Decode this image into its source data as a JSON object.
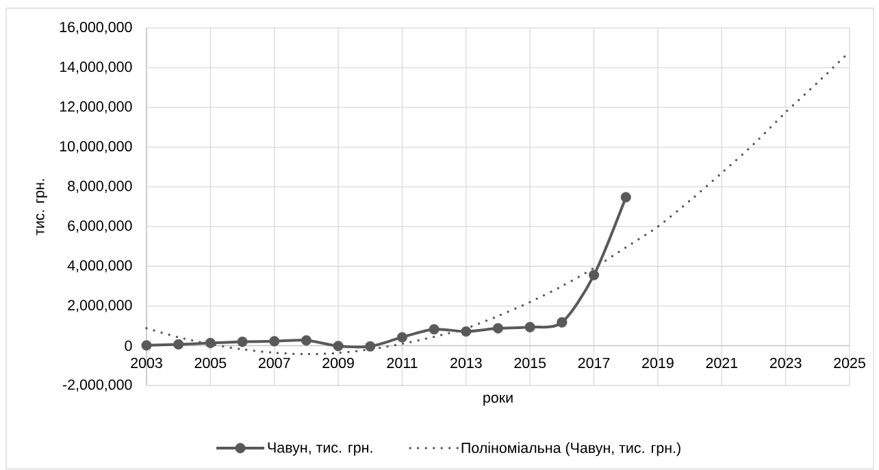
{
  "chart_data": {
    "type": "line",
    "xlabel": "роки",
    "ylabel": "тис. грн.",
    "x": [
      2003,
      2004,
      2005,
      2006,
      2007,
      2008,
      2009,
      2010,
      2011,
      2012,
      2013,
      2014,
      2015,
      2016,
      2017,
      2018
    ],
    "series": [
      {
        "name": "Чавун, тис. грн.",
        "color": "#595959",
        "marker": "circle",
        "line_style": "solid",
        "values": [
          20000,
          70000,
          140000,
          200000,
          230000,
          270000,
          -10000,
          -30000,
          430000,
          830000,
          720000,
          880000,
          940000,
          1180000,
          3560000,
          7480000
        ]
      },
      {
        "name": "Поліноміальна (Чавун, тис. грн.)",
        "color": "#595959",
        "marker": "none",
        "line_style": "dotted",
        "x": [
          2003,
          2004,
          2005,
          2006,
          2007,
          2008,
          2009,
          2010,
          2011,
          2012,
          2013,
          2014,
          2015,
          2016,
          2017,
          2018,
          2019,
          2020,
          2021,
          2022,
          2023,
          2024,
          2025
        ],
        "values": [
          880000,
          430000,
          80000,
          -180000,
          -350000,
          -420000,
          -360000,
          -180000,
          100000,
          450000,
          880000,
          1500000,
          2200000,
          3000000,
          3920000,
          4950000,
          6000000,
          7300000,
          8700000,
          10150000,
          11750000,
          13250000,
          14800000
        ]
      }
    ],
    "xlim": [
      2003,
      2025
    ],
    "xticks": [
      2003,
      2005,
      2007,
      2009,
      2011,
      2013,
      2015,
      2017,
      2019,
      2021,
      2023,
      2025
    ],
    "ylim": [
      -2000000,
      16000000
    ],
    "yticks": [
      {
        "value": -2000000,
        "label": "-2,000,000"
      },
      0,
      {
        "value": 2000000,
        "label": "2,000,000"
      },
      {
        "value": 4000000,
        "label": "4,000,000"
      },
      {
        "value": 6000000,
        "label": "6,000,000"
      },
      {
        "value": 8000000,
        "label": "8,000,000"
      },
      {
        "value": 10000000,
        "label": "10,000,000"
      },
      {
        "value": 12000000,
        "label": "12,000,000"
      },
      {
        "value": 14000000,
        "label": "14,000,000"
      },
      {
        "value": 16000000,
        "label": "16,000,000"
      }
    ],
    "grid": true,
    "legend": "bottom"
  }
}
